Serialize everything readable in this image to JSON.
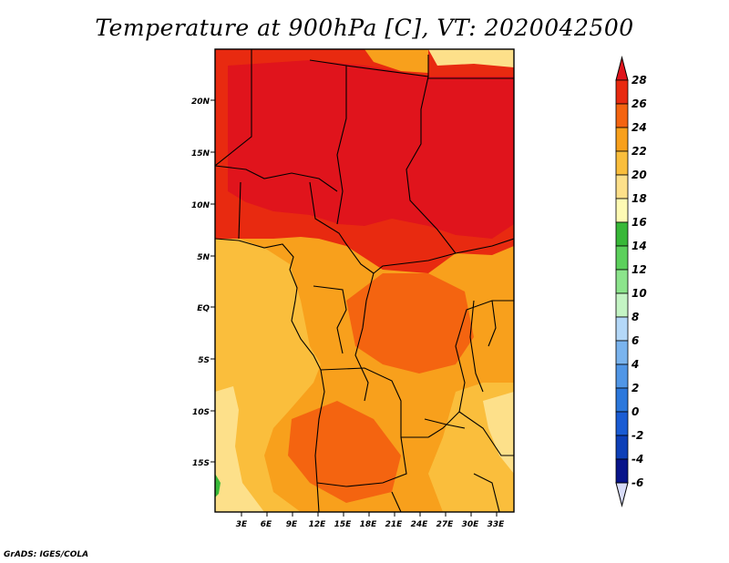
{
  "title": "Temperature at 900hPa [C], VT: 2020042500",
  "credit": "GrADS: IGES/COLA",
  "map": {
    "lat_ticks": [
      "20N",
      "15N",
      "10N",
      "5N",
      "EQ",
      "5S",
      "10S",
      "15S"
    ],
    "lon_ticks": [
      "3E",
      "6E",
      "9E",
      "12E",
      "15E",
      "18E",
      "21E",
      "24E",
      "27E",
      "30E",
      "33E"
    ]
  },
  "colorbar": {
    "labels": [
      "28",
      "26",
      "24",
      "22",
      "20",
      "18",
      "16",
      "14",
      "12",
      "10",
      "8",
      "6",
      "4",
      "2",
      "0",
      "-2",
      "-4",
      "-6"
    ],
    "colors": {
      "above_28": "#e0141c",
      "26_28": "#e82a10",
      "24_26": "#f46410",
      "22_24": "#f8a01c",
      "20_22": "#fabe3c",
      "18_20": "#fde08a",
      "16_18": "#fefab4",
      "14_16": "#38b838",
      "12_14": "#5cd05c",
      "10_12": "#8ce48c",
      "8_10": "#c4f4c4",
      "6_8": "#b4d8f8",
      "4_6": "#7ab4ee",
      "2_4": "#5096e6",
      "0_2": "#2c78dc",
      "-2_0": "#1a5cd4",
      "-4_-2": "#0e40b8",
      "-6_-4": "#08148a",
      "below_-6": "#d8dcf8"
    }
  }
}
